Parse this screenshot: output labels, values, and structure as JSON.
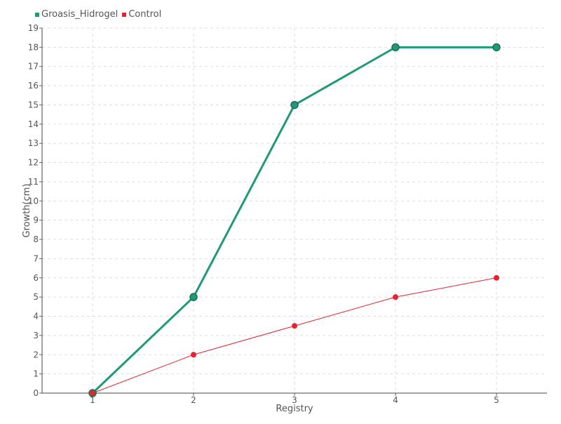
{
  "chart_data": {
    "type": "line",
    "xlabel": "Registry",
    "ylabel": "Growth(cm)",
    "categories": [
      "1",
      "2",
      "3",
      "4",
      "5"
    ],
    "x": [
      1,
      2,
      3,
      4,
      5
    ],
    "xlim": [
      0.5,
      5.5
    ],
    "ylim": [
      0,
      19
    ],
    "yticks": [
      0,
      1,
      2,
      3,
      4,
      5,
      6,
      7,
      8,
      9,
      10,
      11,
      12,
      13,
      14,
      15,
      16,
      17,
      18,
      19
    ],
    "grid": true,
    "legend_position": "top-left",
    "series": [
      {
        "name": "Groasis_Hidrogel",
        "color": "#1f9a77",
        "values": [
          0,
          5,
          15,
          18,
          18
        ]
      },
      {
        "name": "Control",
        "color": "#e8212e",
        "values": [
          0,
          2,
          3.5,
          5,
          6
        ]
      }
    ]
  }
}
